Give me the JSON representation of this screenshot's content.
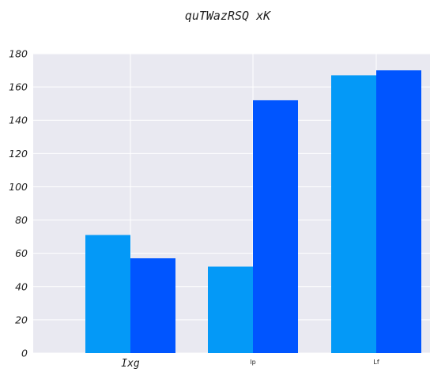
{
  "chart_data": {
    "type": "bar",
    "title": "quTWazRSQ xK",
    "categories": [
      "Ixg",
      "lp",
      "Lf"
    ],
    "series": [
      {
        "values": [
          71,
          52,
          167
        ],
        "color": "#0499f7"
      },
      {
        "values": [
          57,
          152,
          170
        ],
        "color": "#0055ff"
      }
    ],
    "ylim": [
      0,
      180
    ],
    "yticks": [
      0,
      20,
      40,
      60,
      80,
      100,
      120,
      140,
      160,
      180
    ],
    "grid": true,
    "background": "#e9e9f1",
    "xlabel": "",
    "ylabel": ""
  }
}
